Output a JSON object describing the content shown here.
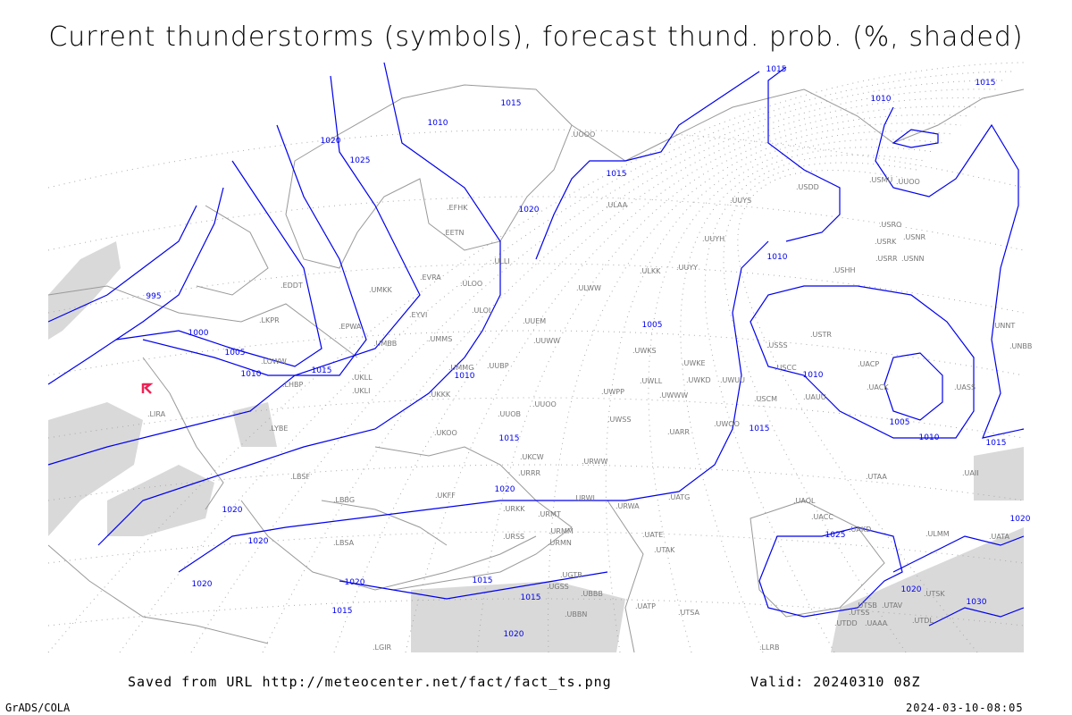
{
  "title": "Current thunderstorms (symbols), forecast thund. prob. (%, shaded)",
  "footer": {
    "saved_from": "Saved from URL http://meteocenter.net/fact/fact_ts.png",
    "valid": "Valid: 20240310 08Z",
    "software": "GrADS/COLA",
    "generated": "2024-03-10-08:05"
  },
  "map": {
    "colors": {
      "isobar": "#0000ee",
      "coastline": "#999999",
      "shading": "#d9d9d9",
      "thunderstorm_symbol": "#ee2255"
    },
    "thunderstorm_symbols": [
      {
        "near_station": "LIRA",
        "icon": "thunderstorm-icon"
      }
    ],
    "isobar_labels": [
      "995",
      "1000",
      "1005",
      "1010",
      "1015",
      "1020",
      "1025",
      "1015",
      "1010",
      "1015",
      "1020",
      "1015",
      "1010",
      "1005",
      "1010",
      "1015",
      "1020",
      "1020",
      "1020",
      "1020",
      "1020",
      "1015",
      "1015",
      "1015",
      "1020",
      "1025",
      "1030",
      "1010",
      "1015",
      "1020",
      "1010",
      "1010",
      "1005",
      "1015",
      "1020",
      "1015"
    ],
    "stations": [
      "EDDT",
      "LKPR",
      "LOWW",
      "LHBP",
      "LYBE",
      "LBSF",
      "LIRA",
      "LBBG",
      "LBSA",
      "LGIR",
      "EPWA",
      "UMMS",
      "UMBB",
      "UKLL",
      "UKLI",
      "UKKK",
      "UKOO",
      "UKFF",
      "URRR",
      "URKK",
      "UMMG",
      "UUBP",
      "UUOO",
      "UUOB",
      "UKCW",
      "UUWW",
      "UUEM",
      "ULLI",
      "ULOL",
      "ULOO",
      "EVRA",
      "EYVI",
      "UMKK",
      "EETN",
      "EFHK",
      "ULAA",
      "ULWW",
      "ULKK",
      "UUYY",
      "UUYH",
      "UUYS",
      "USDD",
      "UUOO",
      "USMU",
      "USRR",
      "USNN",
      "USHH",
      "USNR",
      "USRO",
      "USRK",
      "UNNT",
      "UNBB",
      "USTR",
      "USSS",
      "USCC",
      "UACP",
      "UACK",
      "UASS",
      "UAUU",
      "USCM",
      "UWUU",
      "UWKE",
      "UWKD",
      "UWWW",
      "UWLL",
      "UWKS",
      "UWOO",
      "UWPP",
      "UWSS",
      "UARR",
      "UATG",
      "URWW",
      "URWI",
      "URWA",
      "URMT",
      "URMM",
      "URMN",
      "URSS",
      "UGTB",
      "UGSS",
      "UBBN",
      "UBBB",
      "UATP",
      "UATE",
      "UTAK",
      "UTSA",
      "UTSB",
      "UTSS",
      "UTAV",
      "UTDD",
      "UTDL",
      "UTSK",
      "UAAA",
      "UAII",
      "UATA",
      "UAOL",
      "UACC",
      "UAKD",
      "UTAA",
      "LLRB",
      "ULMM",
      "UOOO"
    ]
  }
}
